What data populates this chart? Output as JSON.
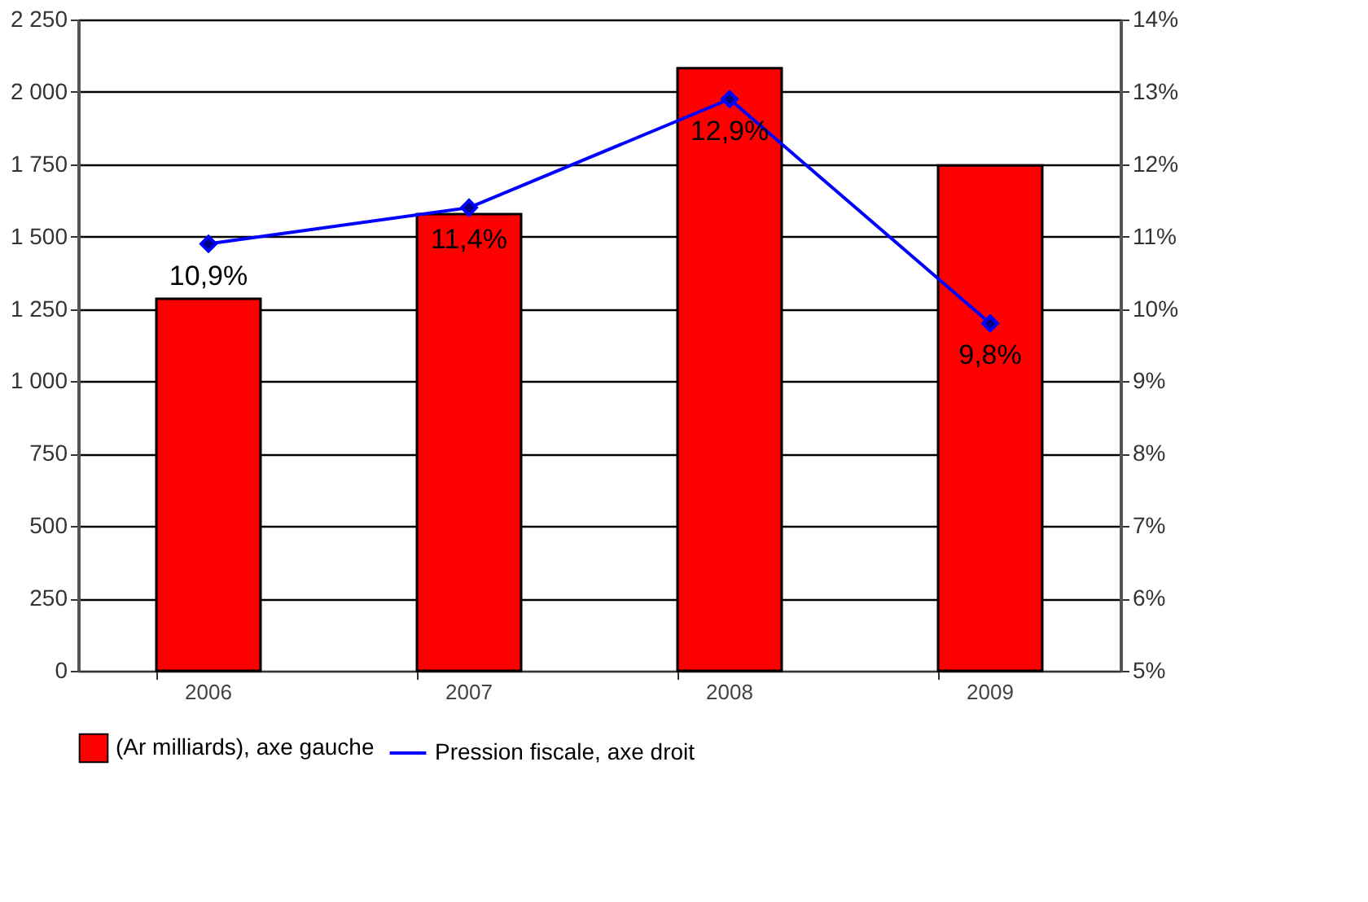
{
  "chart_data": {
    "type": "bar",
    "categories": [
      "2006",
      "2007",
      "2008",
      "2009"
    ],
    "series": [
      {
        "name": "(Ar milliards), axe gauche",
        "color": "#ff0000",
        "values": [
          1285,
          1578,
          2082,
          1746
        ]
      },
      {
        "type": "line",
        "name": "Pression fiscale, axe droit",
        "color": "#0000ff",
        "axis": "y2",
        "marker": "diamond",
        "values": [
          10.9,
          11.4,
          12.9,
          9.8
        ],
        "value_labels": [
          "10,9%",
          "11,4%",
          "12,9%",
          "9,8%"
        ]
      }
    ],
    "ylim": [
      0,
      2250
    ],
    "yticks": [
      0,
      250,
      500,
      750,
      {
        "value": 1000,
        "label": "1 000"
      },
      {
        "value": 1250,
        "label": "1 250"
      },
      {
        "value": 1500,
        "label": "1 500"
      },
      {
        "value": 1750,
        "label": "1 750"
      },
      {
        "value": 2000,
        "label": "2 000"
      },
      {
        "value": 2250,
        "label": "2 250"
      }
    ],
    "y2lim": [
      5,
      14
    ],
    "y2ticks": [
      {
        "value": 5,
        "label": "5%"
      },
      {
        "value": 6,
        "label": "6%"
      },
      {
        "value": 7,
        "label": "7%"
      },
      {
        "value": 8,
        "label": "8%"
      },
      {
        "value": 9,
        "label": "9%"
      },
      {
        "value": 10,
        "label": "10%"
      },
      {
        "value": 11,
        "label": "11%"
      },
      {
        "value": 12,
        "label": "12%"
      },
      {
        "value": 13,
        "label": "13%"
      },
      {
        "value": 14,
        "label": "14%"
      }
    ],
    "grid": "y",
    "legend": "bottom"
  }
}
